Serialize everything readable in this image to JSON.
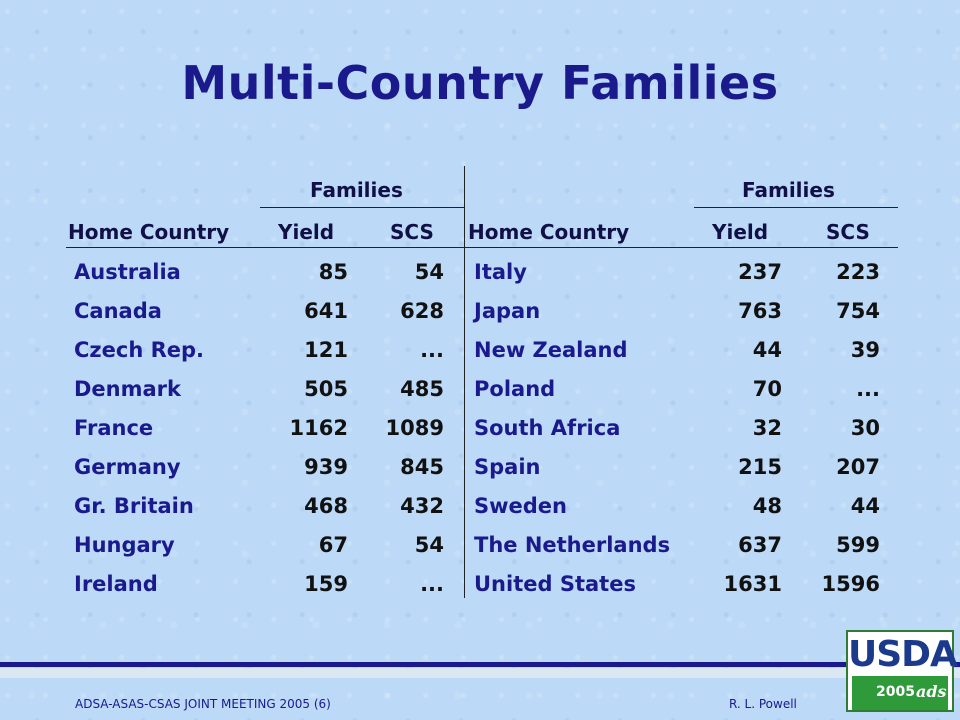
{
  "title": "Multi-Country Families",
  "table": {
    "group_header": "Families",
    "columns": [
      "Home Country",
      "Yield",
      "SCS"
    ],
    "left_rows": [
      {
        "country": "Australia",
        "yield": "85",
        "scs": "54"
      },
      {
        "country": "Canada",
        "yield": "641",
        "scs": "628"
      },
      {
        "country": "Czech Rep.",
        "yield": "121",
        "scs": "..."
      },
      {
        "country": "Denmark",
        "yield": "505",
        "scs": "485"
      },
      {
        "country": "France",
        "yield": "1162",
        "scs": "1089"
      },
      {
        "country": "Germany",
        "yield": "939",
        "scs": "845"
      },
      {
        "country": "Gr. Britain",
        "yield": "468",
        "scs": "432"
      },
      {
        "country": "Hungary",
        "yield": "67",
        "scs": "54"
      },
      {
        "country": "Ireland",
        "yield": "159",
        "scs": "..."
      }
    ],
    "right_rows": [
      {
        "country": "Italy",
        "yield": "237",
        "scs": "223"
      },
      {
        "country": "Japan",
        "yield": "763",
        "scs": "754"
      },
      {
        "country": "New Zealand",
        "yield": "44",
        "scs": "39"
      },
      {
        "country": "Poland",
        "yield": "70",
        "scs": "..."
      },
      {
        "country": "South Africa",
        "yield": "32",
        "scs": "30"
      },
      {
        "country": "Spain",
        "yield": "215",
        "scs": "207"
      },
      {
        "country": "Sweden",
        "yield": "48",
        "scs": "44"
      },
      {
        "country": "The Netherlands",
        "yield": "637",
        "scs": "599"
      },
      {
        "country": "United States",
        "yield": "1631",
        "scs": "1596"
      }
    ]
  },
  "footer": {
    "left": "ADSA-ASAS-CSAS JOINT MEETING 2005 (6)",
    "right": "R. L. Powell"
  },
  "logo": {
    "text": "USDA",
    "year": "2005",
    "mark": "ads"
  },
  "colors": {
    "background": "#bcd9f7",
    "title": "#1a1a8c",
    "country_text": "#1a1a8c",
    "number_text": "#111111",
    "logo_green": "#2e9a3a"
  }
}
